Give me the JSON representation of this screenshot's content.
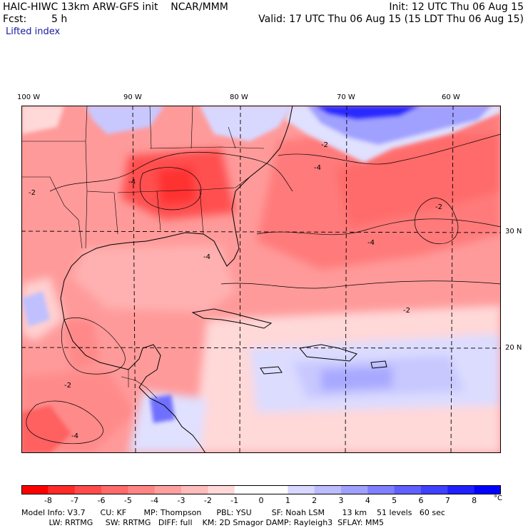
{
  "header": {
    "line1_left": "HAIC-HIWC 13km ARW-GFS init    NCAR/MMM",
    "line1_right": "Init: 12 UTC Thu 06 Aug 15",
    "fcst_label": "Fcst:",
    "fcst_value": "5 h",
    "valid": "Valid: 17 UTC Thu 06 Aug 15 (15 LDT Thu 06 Aug 15)",
    "field": "Lifted index"
  },
  "axes": {
    "lon_labels": [
      "100 W",
      "90 W",
      "80 W",
      "70 W",
      "60 W"
    ],
    "lat_labels": [
      "30 N",
      "20 N"
    ]
  },
  "colorbar": {
    "ticks": [
      "-8",
      "-7",
      "-6",
      "-5",
      "-4",
      "-3",
      "-2",
      "-1",
      "0",
      "1",
      "2",
      "3",
      "4",
      "5",
      "6",
      "7",
      "8"
    ],
    "unit": "°C",
    "colors": [
      "#ff0000",
      "#ff2a2a",
      "#ff4b4b",
      "#ff6a6a",
      "#ff8585",
      "#ffa0a0",
      "#ffbcbc",
      "#ffd8d8",
      "#ffffff",
      "#ffffff",
      "#d8d8ff",
      "#bcbcff",
      "#a0a0ff",
      "#8080ff",
      "#6060ff",
      "#4040ff",
      "#2020ff",
      "#0000ff"
    ]
  },
  "footer": {
    "line1": "Model Info: V3.7      CU: KF       MP: Thompson      PBL: YSU        SF: Noah LSM       13 km    51 levels   60 sec",
    "line2": "           LW: RRTMG     SW: RRTMG   DIFF: full    KM: 2D Smagor DAMP: Rayleigh3  SFLAY: MM5"
  },
  "map_features": {
    "contour_labels": [
      "-2",
      "-4",
      "-2",
      "-4",
      "-2",
      "-4",
      "-2",
      "-4",
      "-2",
      "-4"
    ],
    "field_colors": {
      "strong_red": "#ff3030",
      "red": "#ff6a6a",
      "light_red": "#ffa0a0",
      "pink": "#ffd0d0",
      "light_blue": "#d8d8ff",
      "blue": "#7878ff",
      "deep_blue": "#0000ff"
    }
  }
}
